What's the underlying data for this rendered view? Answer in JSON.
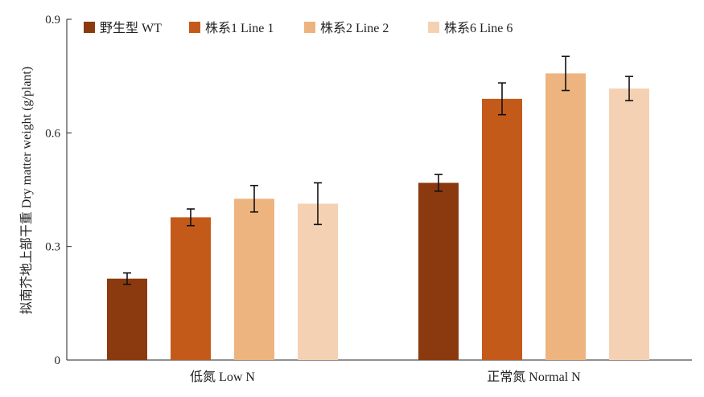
{
  "chart_data": {
    "type": "bar",
    "title": "",
    "xlabel": "",
    "ylabel": "拟南芥地上部干重 Dry matter weight (g/plant)",
    "ylim": [
      0,
      0.9
    ],
    "yticks": [
      0,
      0.3,
      0.6,
      0.9
    ],
    "ytick_labels": [
      "0",
      "0.3",
      "0.6",
      "0.9"
    ],
    "grid": false,
    "legend_position": "top",
    "categories": [
      "低氮 Low N",
      "正常氮 Normal N"
    ],
    "series": [
      {
        "name": "野生型 WT",
        "color": "#8b3a10",
        "values": [
          0.215,
          0.468
        ],
        "errors": [
          0.015,
          0.022
        ]
      },
      {
        "name": "株系1 Line 1",
        "color": "#c45a1a",
        "values": [
          0.377,
          0.69
        ],
        "errors": [
          0.022,
          0.042
        ]
      },
      {
        "name": "株系2  Line 2",
        "color": "#edb47f",
        "values": [
          0.426,
          0.757
        ],
        "errors": [
          0.035,
          0.045
        ]
      },
      {
        "name": "株系6 Line 6",
        "color": "#f5d1b3",
        "values": [
          0.413,
          0.717
        ],
        "errors": [
          0.055,
          0.032
        ]
      }
    ]
  }
}
